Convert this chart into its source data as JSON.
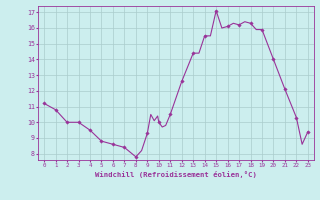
{
  "x": [
    0,
    1,
    2,
    3,
    4,
    5,
    6,
    7,
    8,
    8.5,
    9.0,
    9.3,
    9.6,
    9.9,
    10.0,
    10.3,
    10.6,
    11.0,
    12.0,
    13.0,
    13.5,
    14.0,
    14.5,
    15.0,
    15.5,
    16.0,
    16.5,
    17.0,
    17.5,
    18.0,
    18.5,
    19.0,
    20.0,
    21.0,
    22.0,
    22.5,
    23.0
  ],
  "y": [
    11.2,
    10.8,
    10.0,
    10.0,
    9.5,
    8.8,
    8.6,
    8.4,
    7.8,
    8.2,
    9.3,
    10.5,
    10.1,
    10.4,
    10.0,
    9.7,
    9.8,
    10.5,
    12.6,
    14.4,
    14.4,
    15.5,
    15.5,
    17.1,
    16.0,
    16.1,
    16.3,
    16.2,
    16.4,
    16.3,
    15.9,
    15.9,
    14.0,
    12.1,
    10.3,
    8.6,
    9.4
  ],
  "marker_x": [
    0,
    1,
    2,
    3,
    4,
    5,
    6,
    7,
    8,
    9,
    10,
    11,
    12,
    13,
    14,
    15,
    16,
    17,
    18,
    19,
    20,
    21,
    22,
    23
  ],
  "marker_y": [
    11.2,
    10.8,
    10.0,
    10.0,
    9.5,
    8.8,
    8.6,
    8.4,
    7.8,
    9.3,
    10.0,
    10.5,
    12.6,
    14.4,
    15.5,
    17.1,
    16.1,
    16.2,
    16.3,
    15.9,
    14.0,
    12.1,
    10.3,
    9.4
  ],
  "ylim": [
    7.6,
    17.4
  ],
  "yticks": [
    8,
    9,
    10,
    11,
    12,
    13,
    14,
    15,
    16,
    17
  ],
  "xlim": [
    -0.5,
    23.5
  ],
  "xticks": [
    0,
    1,
    2,
    3,
    4,
    5,
    6,
    7,
    8,
    9,
    10,
    11,
    12,
    13,
    14,
    15,
    16,
    17,
    18,
    19,
    20,
    21,
    22,
    23
  ],
  "line_color": "#993399",
  "marker_color": "#993399",
  "bg_color": "#cceeee",
  "grid_color": "#aacccc",
  "xlabel": "Windchill (Refroidissement éolien,°C)",
  "xlabel_color": "#993399",
  "tick_color": "#993399"
}
